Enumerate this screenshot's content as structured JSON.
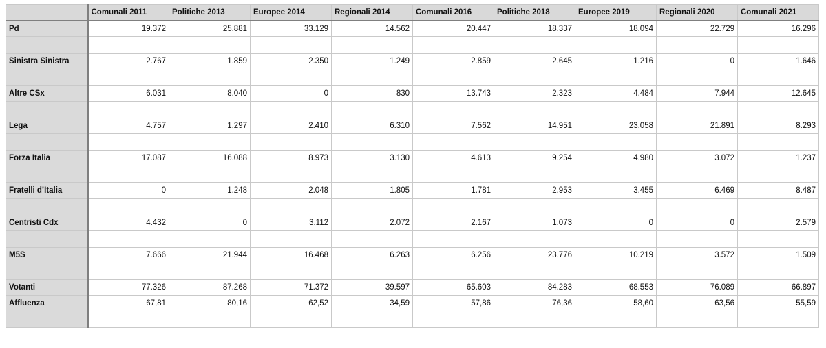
{
  "columns": [
    "Comunali 2011",
    "Politiche 2013",
    "Europee 2014",
    "Regionali 2014",
    "Comunali 2016",
    "Politiche 2018",
    "Europee 2019",
    "Regionali 2020",
    "Comunali 2021"
  ],
  "rows": [
    {
      "label": "Pd",
      "values": [
        "19.372",
        "25.881",
        "33.129",
        "14.562",
        "20.447",
        "18.337",
        "18.094",
        "22.729",
        "16.296"
      ]
    },
    {
      "label": "",
      "values": [
        "",
        "",
        "",
        "",
        "",
        "",
        "",
        "",
        ""
      ]
    },
    {
      "label": "Sinistra Sinistra",
      "values": [
        "2.767",
        "1.859",
        "2.350",
        "1.249",
        "2.859",
        "2.645",
        "1.216",
        "0",
        "1.646"
      ]
    },
    {
      "label": "",
      "values": [
        "",
        "",
        "",
        "",
        "",
        "",
        "",
        "",
        ""
      ]
    },
    {
      "label": "Altre CSx",
      "values": [
        "6.031",
        "8.040",
        "0",
        "830",
        "13.743",
        "2.323",
        "4.484",
        "7.944",
        "12.645"
      ]
    },
    {
      "label": "",
      "values": [
        "",
        "",
        "",
        "",
        "",
        "",
        "",
        "",
        ""
      ]
    },
    {
      "label": "Lega",
      "values": [
        "4.757",
        "1.297",
        "2.410",
        "6.310",
        "7.562",
        "14.951",
        "23.058",
        "21.891",
        "8.293"
      ]
    },
    {
      "label": "",
      "values": [
        "",
        "",
        "",
        "",
        "",
        "",
        "",
        "",
        ""
      ]
    },
    {
      "label": "Forza Italia",
      "values": [
        "17.087",
        "16.088",
        "8.973",
        "3.130",
        "4.613",
        "9.254",
        "4.980",
        "3.072",
        "1.237"
      ]
    },
    {
      "label": "",
      "values": [
        "",
        "",
        "",
        "",
        "",
        "",
        "",
        "",
        ""
      ]
    },
    {
      "label": "Fratelli d’Italia",
      "values": [
        "0",
        "1.248",
        "2.048",
        "1.805",
        "1.781",
        "2.953",
        "3.455",
        "6.469",
        "8.487"
      ]
    },
    {
      "label": "",
      "values": [
        "",
        "",
        "",
        "",
        "",
        "",
        "",
        "",
        ""
      ]
    },
    {
      "label": "Centristi Cdx",
      "values": [
        "4.432",
        "0",
        "3.112",
        "2.072",
        "2.167",
        "1.073",
        "0",
        "0",
        "2.579"
      ]
    },
    {
      "label": "",
      "values": [
        "",
        "",
        "",
        "",
        "",
        "",
        "",
        "",
        ""
      ]
    },
    {
      "label": "M5S",
      "values": [
        "7.666",
        "21.944",
        "16.468",
        "6.263",
        "6.256",
        "23.776",
        "10.219",
        "3.572",
        "1.509"
      ]
    },
    {
      "label": "",
      "values": [
        "",
        "",
        "",
        "",
        "",
        "",
        "",
        "",
        ""
      ]
    },
    {
      "label": "Votanti",
      "values": [
        "77.326",
        "87.268",
        "71.372",
        "39.597",
        "65.603",
        "84.283",
        "68.553",
        "76.089",
        "66.897"
      ]
    },
    {
      "label": "Affluenza",
      "values": [
        "67,81",
        "80,16",
        "62,52",
        "34,59",
        "57,86",
        "76,36",
        "58,60",
        "63,56",
        "55,59"
      ]
    },
    {
      "label": "",
      "values": [
        "",
        "",
        "",
        "",
        "",
        "",
        "",
        "",
        ""
      ]
    }
  ]
}
